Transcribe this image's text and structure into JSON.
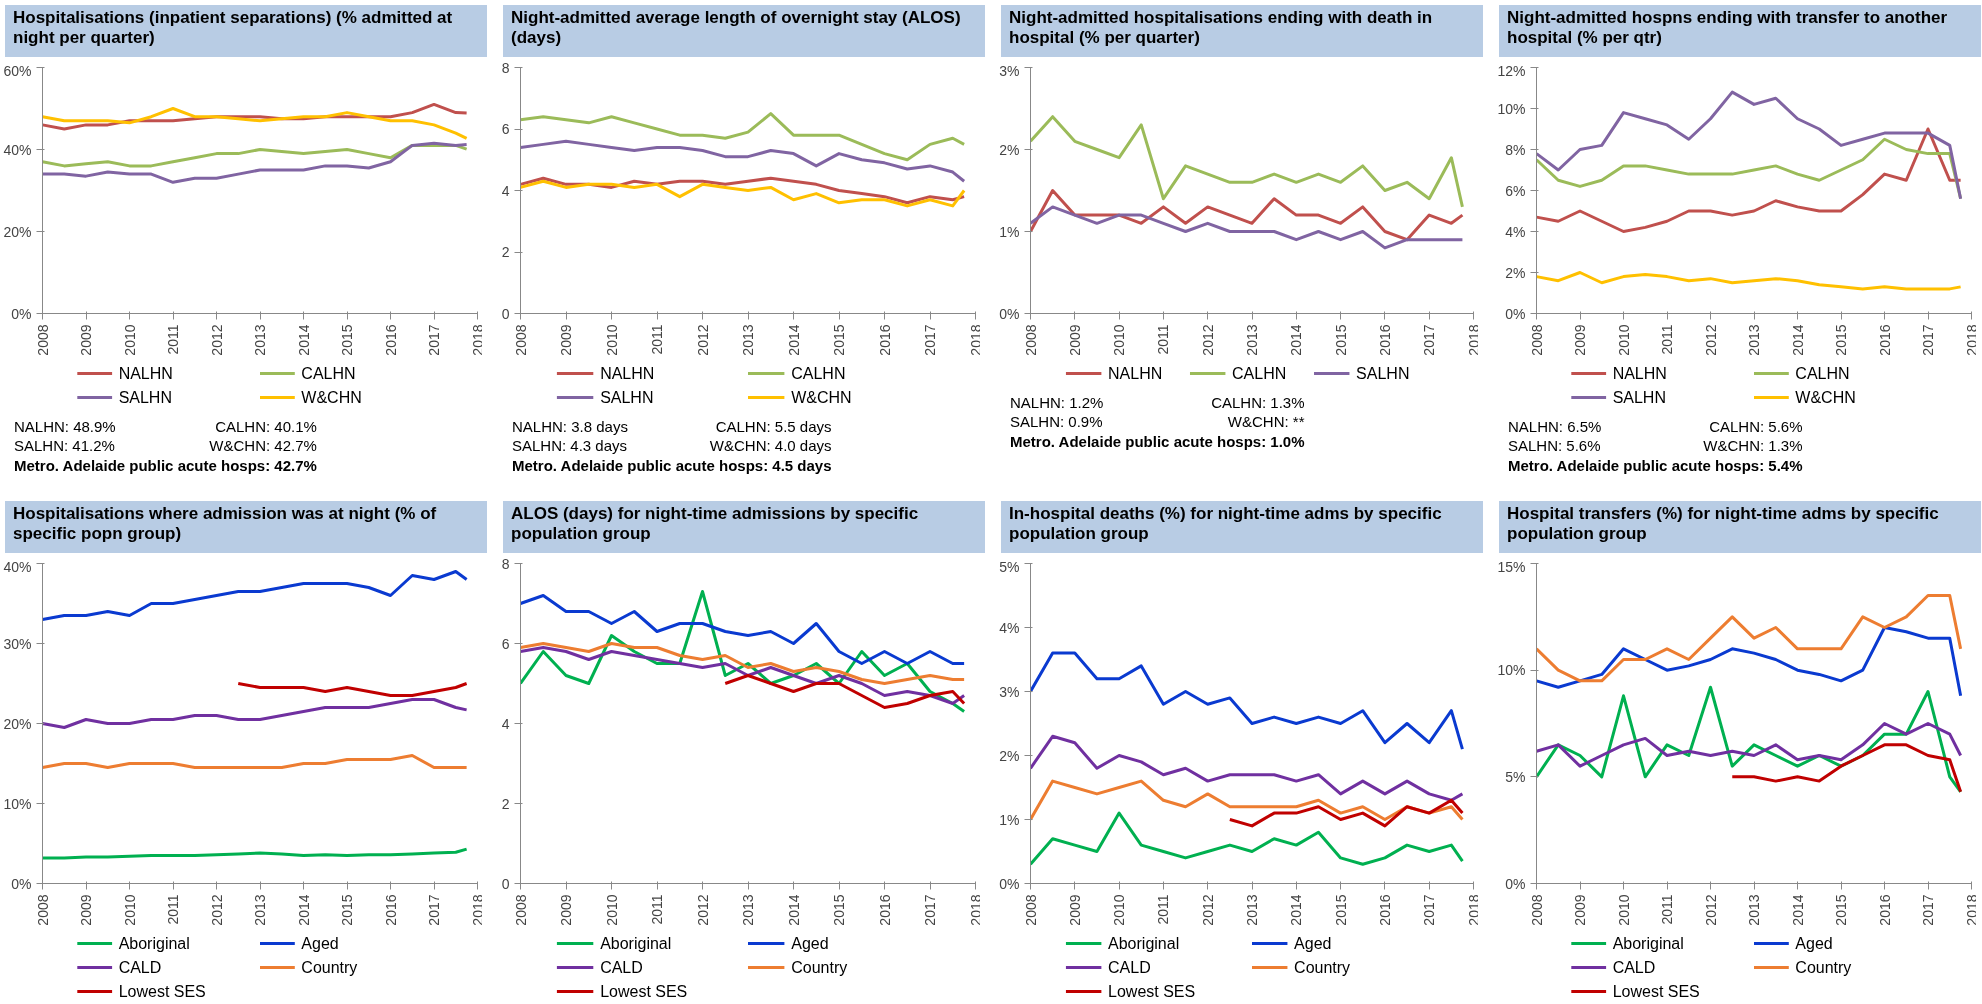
{
  "chart_data": [
    {
      "type": "line",
      "title": "Hospitalisations (inpatient separations) (% admitted at night per quarter)",
      "x": [
        2008,
        2008.5,
        2009,
        2009.5,
        2010,
        2010.5,
        2011,
        2011.5,
        2012,
        2012.5,
        2013,
        2013.5,
        2014,
        2014.5,
        2015,
        2015.5,
        2016,
        2016.5,
        2017,
        2017.5,
        2017.75
      ],
      "xlim": [
        2008,
        2018
      ],
      "xticks": [
        2008,
        2009,
        2010,
        2011,
        2012,
        2013,
        2014,
        2015,
        2016,
        2017,
        2018
      ],
      "ylim": [
        0,
        60
      ],
      "yticks": [
        {
          "value": 0,
          "label": "0%"
        },
        {
          "value": 20,
          "label": "20%"
        },
        {
          "value": 40,
          "label": "40%"
        },
        {
          "value": 60,
          "label": "60%"
        }
      ],
      "legend": "bottom",
      "series": [
        {
          "name": "NALHN",
          "color": "#c0504d",
          "values": [
            46,
            45,
            46,
            46,
            47,
            47,
            47,
            47.5,
            48,
            48,
            48,
            47.5,
            47.5,
            48,
            48,
            48,
            48,
            49,
            51,
            49,
            48.9
          ]
        },
        {
          "name": "CALHN",
          "color": "#9bbb59",
          "values": [
            37,
            36,
            36.5,
            37,
            36,
            36,
            37,
            38,
            39,
            39,
            40,
            39.5,
            39,
            39.5,
            40,
            39,
            38,
            41,
            41,
            41,
            40.1
          ]
        },
        {
          "name": "SALHN",
          "color": "#8064a2",
          "values": [
            34,
            34,
            33.5,
            34.5,
            34,
            34,
            32,
            33,
            33,
            34,
            35,
            35,
            35,
            36,
            36,
            35.5,
            37,
            41,
            41.5,
            41,
            41.2
          ]
        },
        {
          "name": "W&CHN",
          "color": "#ffc000",
          "values": [
            48,
            47,
            47,
            47,
            46.5,
            48,
            50,
            48,
            48,
            47.5,
            47,
            47.5,
            48,
            48,
            49,
            48,
            47,
            47,
            46,
            44,
            42.7
          ]
        }
      ],
      "annotations": [
        "NALHN: 48.9%",
        "CALHN: 40.1%",
        "SALHN: 41.2%",
        "W&CHN: 42.7%",
        "Metro. Adelaide public acute hosps: 42.7%"
      ]
    },
    {
      "type": "line",
      "title": "Night-admitted average length of overnight stay (ALOS) (days)",
      "x": [
        2008,
        2008.5,
        2009,
        2009.5,
        2010,
        2010.5,
        2011,
        2011.5,
        2012,
        2012.5,
        2013,
        2013.5,
        2014,
        2014.5,
        2015,
        2015.5,
        2016,
        2016.5,
        2017,
        2017.5,
        2017.75
      ],
      "xlim": [
        2008,
        2018
      ],
      "xticks": [
        2008,
        2009,
        2010,
        2011,
        2012,
        2013,
        2014,
        2015,
        2016,
        2017,
        2018
      ],
      "ylim": [
        0,
        8
      ],
      "yticks": [
        0,
        2,
        4,
        6,
        8
      ],
      "legend": "bottom",
      "series": [
        {
          "name": "NALHN",
          "color": "#c0504d",
          "values": [
            4.2,
            4.4,
            4.2,
            4.2,
            4.1,
            4.3,
            4.2,
            4.3,
            4.3,
            4.2,
            4.3,
            4.4,
            4.3,
            4.2,
            4.0,
            3.9,
            3.8,
            3.6,
            3.8,
            3.7,
            3.8
          ]
        },
        {
          "name": "CALHN",
          "color": "#9bbb59",
          "values": [
            6.3,
            6.4,
            6.3,
            6.2,
            6.4,
            6.2,
            6.0,
            5.8,
            5.8,
            5.7,
            5.9,
            6.5,
            5.8,
            5.8,
            5.8,
            5.5,
            5.2,
            5.0,
            5.5,
            5.7,
            5.5
          ]
        },
        {
          "name": "SALHN",
          "color": "#8064a2",
          "values": [
            5.4,
            5.5,
            5.6,
            5.5,
            5.4,
            5.3,
            5.4,
            5.4,
            5.3,
            5.1,
            5.1,
            5.3,
            5.2,
            4.8,
            5.2,
            5.0,
            4.9,
            4.7,
            4.8,
            4.6,
            4.3
          ]
        },
        {
          "name": "W&CHN",
          "color": "#ffc000",
          "values": [
            4.1,
            4.3,
            4.1,
            4.2,
            4.2,
            4.1,
            4.2,
            3.8,
            4.2,
            4.1,
            4.0,
            4.1,
            3.7,
            3.9,
            3.6,
            3.7,
            3.7,
            3.5,
            3.7,
            3.5,
            4.0
          ]
        }
      ],
      "annotations": [
        "NALHN: 3.8 days",
        "CALHN: 5.5 days",
        "SALHN: 4.3 days",
        "W&CHN: 4.0 days",
        "Metro. Adelaide public acute hosps: 4.5 days"
      ]
    },
    {
      "type": "line",
      "title": "Night-admitted hospitalisations ending with death in hospital (% per quarter)",
      "x": [
        2008,
        2008.5,
        2009,
        2009.5,
        2010,
        2010.5,
        2011,
        2011.5,
        2012,
        2012.5,
        2013,
        2013.5,
        2014,
        2014.5,
        2015,
        2015.5,
        2016,
        2016.5,
        2017,
        2017.5,
        2017.75
      ],
      "xlim": [
        2008,
        2018
      ],
      "xticks": [
        2008,
        2009,
        2010,
        2011,
        2012,
        2013,
        2014,
        2015,
        2016,
        2017,
        2018
      ],
      "ylim": [
        0,
        3
      ],
      "yticks": [
        {
          "value": 0,
          "label": "0%"
        },
        {
          "value": 1,
          "label": "1%"
        },
        {
          "value": 2,
          "label": "2%"
        },
        {
          "value": 3,
          "label": "3%"
        }
      ],
      "legend": "bottom",
      "series": [
        {
          "name": "NALHN",
          "color": "#c0504d",
          "values": [
            1.0,
            1.5,
            1.2,
            1.2,
            1.2,
            1.1,
            1.3,
            1.1,
            1.3,
            1.2,
            1.1,
            1.4,
            1.2,
            1.2,
            1.1,
            1.3,
            1.0,
            0.9,
            1.2,
            1.1,
            1.2
          ]
        },
        {
          "name": "CALHN",
          "color": "#9bbb59",
          "values": [
            2.1,
            2.4,
            2.1,
            2.0,
            1.9,
            2.3,
            1.4,
            1.8,
            1.7,
            1.6,
            1.6,
            1.7,
            1.6,
            1.7,
            1.6,
            1.8,
            1.5,
            1.6,
            1.4,
            1.9,
            1.3
          ]
        },
        {
          "name": "SALHN",
          "color": "#8064a2",
          "values": [
            1.1,
            1.3,
            1.2,
            1.1,
            1.2,
            1.2,
            1.1,
            1.0,
            1.1,
            1.0,
            1.0,
            1.0,
            0.9,
            1.0,
            0.9,
            1.0,
            0.8,
            0.9,
            0.9,
            0.9,
            0.9
          ]
        }
      ],
      "annotations": [
        "NALHN: 1.2%",
        "CALHN: 1.3%",
        "SALHN: 0.9%",
        "W&CHN: **",
        "Metro. Adelaide public acute hosps: 1.0%"
      ]
    },
    {
      "type": "line",
      "title": "Night-admitted hospns ending with transfer to another hospital (% per qtr)",
      "x": [
        2008,
        2008.5,
        2009,
        2009.5,
        2010,
        2010.5,
        2011,
        2011.5,
        2012,
        2012.5,
        2013,
        2013.5,
        2014,
        2014.5,
        2015,
        2015.5,
        2016,
        2016.5,
        2017,
        2017.5,
        2017.75
      ],
      "xlim": [
        2008,
        2018
      ],
      "xticks": [
        2008,
        2009,
        2010,
        2011,
        2012,
        2013,
        2014,
        2015,
        2016,
        2017,
        2018
      ],
      "ylim": [
        0,
        12
      ],
      "yticks": [
        {
          "value": 0,
          "label": "0%"
        },
        {
          "value": 2,
          "label": "2%"
        },
        {
          "value": 4,
          "label": "4%"
        },
        {
          "value": 6,
          "label": "6%"
        },
        {
          "value": 8,
          "label": "8%"
        },
        {
          "value": 10,
          "label": "10%"
        },
        {
          "value": 12,
          "label": "12%"
        }
      ],
      "legend": "bottom",
      "series": [
        {
          "name": "NALHN",
          "color": "#c0504d",
          "values": [
            4.7,
            4.5,
            5.0,
            4.5,
            4.0,
            4.2,
            4.5,
            5.0,
            5.0,
            4.8,
            5.0,
            5.5,
            5.2,
            5.0,
            5.0,
            5.8,
            6.8,
            6.5,
            9.0,
            6.5,
            6.5
          ]
        },
        {
          "name": "CALHN",
          "color": "#9bbb59",
          "values": [
            7.5,
            6.5,
            6.2,
            6.5,
            7.2,
            7.2,
            7.0,
            6.8,
            6.8,
            6.8,
            7.0,
            7.2,
            6.8,
            6.5,
            7.0,
            7.5,
            8.5,
            8.0,
            7.8,
            7.8,
            5.6
          ]
        },
        {
          "name": "SALHN",
          "color": "#8064a2",
          "values": [
            7.8,
            7.0,
            8.0,
            8.2,
            9.8,
            9.5,
            9.2,
            8.5,
            9.5,
            10.8,
            10.2,
            10.5,
            9.5,
            9.0,
            8.2,
            8.5,
            8.8,
            8.8,
            8.8,
            8.2,
            5.6
          ]
        },
        {
          "name": "W&CHN",
          "color": "#ffc000",
          "values": [
            1.8,
            1.6,
            2.0,
            1.5,
            1.8,
            1.9,
            1.8,
            1.6,
            1.7,
            1.5,
            1.6,
            1.7,
            1.6,
            1.4,
            1.3,
            1.2,
            1.3,
            1.2,
            1.2,
            1.2,
            1.3
          ]
        }
      ],
      "annotations": [
        "NALHN: 6.5%",
        "CALHN: 5.6%",
        "SALHN: 5.6%",
        "W&CHN: 1.3%",
        "Metro. Adelaide public acute hosps: 5.4%"
      ]
    },
    {
      "type": "line",
      "title": "Hospitalisations where admission was at night (% of specific popn group)",
      "x": [
        2008,
        2008.5,
        2009,
        2009.5,
        2010,
        2010.5,
        2011,
        2011.5,
        2012,
        2012.5,
        2013,
        2013.5,
        2014,
        2014.5,
        2015,
        2015.5,
        2016,
        2016.5,
        2017,
        2017.5,
        2017.75
      ],
      "xlim": [
        2008,
        2018
      ],
      "xticks": [
        2008,
        2009,
        2010,
        2011,
        2012,
        2013,
        2014,
        2015,
        2016,
        2017,
        2018
      ],
      "ylim": [
        0,
        40
      ],
      "yticks": [
        {
          "value": 0,
          "label": "0%"
        },
        {
          "value": 10,
          "label": "10%"
        },
        {
          "value": 20,
          "label": "20%"
        },
        {
          "value": 30,
          "label": "30%"
        },
        {
          "value": 40,
          "label": "40%"
        }
      ],
      "legend": "bottom",
      "series": [
        {
          "name": "Aboriginal",
          "color": "#00b050",
          "values": [
            3.2,
            3.2,
            3.3,
            3.3,
            3.4,
            3.5,
            3.5,
            3.5,
            3.6,
            3.7,
            3.8,
            3.7,
            3.5,
            3.6,
            3.5,
            3.6,
            3.6,
            3.7,
            3.8,
            3.9,
            4.3
          ]
        },
        {
          "name": "Aged",
          "color": "#0a3ad0",
          "values": [
            33,
            33.5,
            33.5,
            34,
            33.5,
            35,
            35,
            35.5,
            36,
            36.5,
            36.5,
            37,
            37.5,
            37.5,
            37.5,
            37,
            36,
            38.5,
            38,
            39,
            38
          ]
        },
        {
          "name": "CALD",
          "color": "#7030a0",
          "values": [
            20,
            19.5,
            20.5,
            20,
            20,
            20.5,
            20.5,
            21,
            21,
            20.5,
            20.5,
            21,
            21.5,
            22,
            22,
            22,
            22.5,
            23,
            23,
            22,
            21.7
          ]
        },
        {
          "name": "Country",
          "color": "#ed7d31",
          "values": [
            14.5,
            15,
            15,
            14.5,
            15,
            15,
            15,
            14.5,
            14.5,
            14.5,
            14.5,
            14.5,
            15,
            15,
            15.5,
            15.5,
            15.5,
            16,
            14.5,
            14.5,
            14.5
          ]
        },
        {
          "name": "Lowest SES",
          "color": "#c00000",
          "values": [
            null,
            null,
            null,
            null,
            null,
            null,
            null,
            null,
            null,
            25,
            24.5,
            24.5,
            24.5,
            24,
            24.5,
            24,
            23.5,
            23.5,
            24,
            24.5,
            25
          ]
        }
      ]
    },
    {
      "type": "line",
      "title": "ALOS (days) for night-time admissions by specific population group",
      "x": [
        2008,
        2008.5,
        2009,
        2009.5,
        2010,
        2010.5,
        2011,
        2011.5,
        2012,
        2012.5,
        2013,
        2013.5,
        2014,
        2014.5,
        2015,
        2015.5,
        2016,
        2016.5,
        2017,
        2017.5,
        2017.75
      ],
      "xlim": [
        2008,
        2018
      ],
      "xticks": [
        2008,
        2009,
        2010,
        2011,
        2012,
        2013,
        2014,
        2015,
        2016,
        2017,
        2018
      ],
      "ylim": [
        0,
        8
      ],
      "yticks": [
        0,
        2,
        4,
        6,
        8
      ],
      "legend": "bottom",
      "series": [
        {
          "name": "Aboriginal",
          "color": "#00b050",
          "values": [
            5.0,
            5.8,
            5.2,
            5.0,
            6.2,
            5.8,
            5.5,
            5.5,
            7.3,
            5.2,
            5.5,
            5.0,
            5.2,
            5.5,
            5.0,
            5.8,
            5.2,
            5.5,
            4.8,
            4.5,
            4.3
          ]
        },
        {
          "name": "Aged",
          "color": "#0a3ad0",
          "values": [
            7.0,
            7.2,
            6.8,
            6.8,
            6.5,
            6.8,
            6.3,
            6.5,
            6.5,
            6.3,
            6.2,
            6.3,
            6.0,
            6.5,
            5.8,
            5.5,
            5.8,
            5.5,
            5.8,
            5.5,
            5.5
          ]
        },
        {
          "name": "CALD",
          "color": "#7030a0",
          "values": [
            5.8,
            5.9,
            5.8,
            5.6,
            5.8,
            5.7,
            5.6,
            5.5,
            5.4,
            5.5,
            5.2,
            5.4,
            5.2,
            5.0,
            5.2,
            5.0,
            4.7,
            4.8,
            4.7,
            4.5,
            4.7
          ]
        },
        {
          "name": "Country",
          "color": "#ed7d31",
          "values": [
            5.9,
            6.0,
            5.9,
            5.8,
            6.0,
            5.9,
            5.9,
            5.7,
            5.6,
            5.7,
            5.4,
            5.5,
            5.3,
            5.4,
            5.3,
            5.1,
            5.0,
            5.1,
            5.2,
            5.1,
            5.1
          ]
        },
        {
          "name": "Lowest SES",
          "color": "#c00000",
          "values": [
            null,
            null,
            null,
            null,
            null,
            null,
            null,
            null,
            null,
            5.0,
            5.2,
            5.0,
            4.8,
            5.0,
            5.0,
            4.7,
            4.4,
            4.5,
            4.7,
            4.8,
            4.5
          ]
        }
      ]
    },
    {
      "type": "line",
      "title": "In-hospital deaths (%) for night-time adms by specific population group",
      "x": [
        2008,
        2008.5,
        2009,
        2009.5,
        2010,
        2010.5,
        2011,
        2011.5,
        2012,
        2012.5,
        2013,
        2013.5,
        2014,
        2014.5,
        2015,
        2015.5,
        2016,
        2016.5,
        2017,
        2017.5,
        2017.75
      ],
      "xlim": [
        2008,
        2018
      ],
      "xticks": [
        2008,
        2009,
        2010,
        2011,
        2012,
        2013,
        2014,
        2015,
        2016,
        2017,
        2018
      ],
      "ylim": [
        0,
        5
      ],
      "yticks": [
        {
          "value": 0,
          "label": "0%"
        },
        {
          "value": 1,
          "label": "1%"
        },
        {
          "value": 2,
          "label": "2%"
        },
        {
          "value": 3,
          "label": "3%"
        },
        {
          "value": 4,
          "label": "4%"
        },
        {
          "value": 5,
          "label": "5%"
        }
      ],
      "legend": "bottom",
      "series": [
        {
          "name": "Aboriginal",
          "color": "#00b050",
          "values": [
            0.3,
            0.7,
            0.6,
            0.5,
            1.1,
            0.6,
            0.5,
            0.4,
            0.5,
            0.6,
            0.5,
            0.7,
            0.6,
            0.8,
            0.4,
            0.3,
            0.4,
            0.6,
            0.5,
            0.6,
            0.35
          ]
        },
        {
          "name": "Aged",
          "color": "#0a3ad0",
          "values": [
            3.0,
            3.6,
            3.6,
            3.2,
            3.2,
            3.4,
            2.8,
            3.0,
            2.8,
            2.9,
            2.5,
            2.6,
            2.5,
            2.6,
            2.5,
            2.7,
            2.2,
            2.5,
            2.2,
            2.7,
            2.1
          ]
        },
        {
          "name": "CALD",
          "color": "#7030a0",
          "values": [
            1.8,
            2.3,
            2.2,
            1.8,
            2.0,
            1.9,
            1.7,
            1.8,
            1.6,
            1.7,
            1.7,
            1.7,
            1.6,
            1.7,
            1.4,
            1.6,
            1.4,
            1.6,
            1.4,
            1.3,
            1.4
          ]
        },
        {
          "name": "Country",
          "color": "#ed7d31",
          "values": [
            1.0,
            1.6,
            1.5,
            1.4,
            1.5,
            1.6,
            1.3,
            1.2,
            1.4,
            1.2,
            1.2,
            1.2,
            1.2,
            1.3,
            1.1,
            1.2,
            1.0,
            1.2,
            1.1,
            1.2,
            1.0
          ]
        },
        {
          "name": "Lowest SES",
          "color": "#c00000",
          "values": [
            null,
            null,
            null,
            null,
            null,
            null,
            null,
            null,
            null,
            1.0,
            0.9,
            1.1,
            1.1,
            1.2,
            1.0,
            1.1,
            0.9,
            1.2,
            1.1,
            1.3,
            1.1
          ]
        }
      ]
    },
    {
      "type": "line",
      "title": "Hospital transfers (%) for night-time adms by specific population group",
      "x": [
        2008,
        2008.5,
        2009,
        2009.5,
        2010,
        2010.5,
        2011,
        2011.5,
        2012,
        2012.5,
        2013,
        2013.5,
        2014,
        2014.5,
        2015,
        2015.5,
        2016,
        2016.5,
        2017,
        2017.5,
        2017.75
      ],
      "xlim": [
        2008,
        2018
      ],
      "xticks": [
        2008,
        2009,
        2010,
        2011,
        2012,
        2013,
        2014,
        2015,
        2016,
        2017,
        2018
      ],
      "ylim": [
        0,
        15
      ],
      "yticks": [
        {
          "value": 0,
          "label": "0%"
        },
        {
          "value": 5,
          "label": "5%"
        },
        {
          "value": 10,
          "label": "10%"
        },
        {
          "value": 15,
          "label": "15%"
        }
      ],
      "legend": "bottom",
      "series": [
        {
          "name": "Aboriginal",
          "color": "#00b050",
          "values": [
            5.0,
            6.5,
            6.0,
            5.0,
            8.8,
            5.0,
            6.5,
            6.0,
            9.2,
            5.5,
            6.5,
            6.0,
            5.5,
            6.0,
            5.5,
            6.0,
            7.0,
            7.0,
            9.0,
            5.0,
            4.3
          ]
        },
        {
          "name": "Aged",
          "color": "#0a3ad0",
          "values": [
            9.5,
            9.2,
            9.5,
            9.8,
            11.0,
            10.5,
            10.0,
            10.2,
            10.5,
            11.0,
            10.8,
            10.5,
            10.0,
            9.8,
            9.5,
            10.0,
            12.0,
            11.8,
            11.5,
            11.5,
            8.8
          ]
        },
        {
          "name": "CALD",
          "color": "#7030a0",
          "values": [
            6.2,
            6.5,
            5.5,
            6.0,
            6.5,
            6.8,
            6.0,
            6.2,
            6.0,
            6.2,
            6.0,
            6.5,
            5.8,
            6.0,
            5.8,
            6.5,
            7.5,
            7.0,
            7.5,
            7.0,
            6.0
          ]
        },
        {
          "name": "Country",
          "color": "#ed7d31",
          "values": [
            11.0,
            10.0,
            9.5,
            9.5,
            10.5,
            10.5,
            11.0,
            10.5,
            11.5,
            12.5,
            11.5,
            12.0,
            11.0,
            11.0,
            11.0,
            12.5,
            12.0,
            12.5,
            13.5,
            13.5,
            11.0
          ]
        },
        {
          "name": "Lowest SES",
          "color": "#c00000",
          "values": [
            null,
            null,
            null,
            null,
            null,
            null,
            null,
            null,
            null,
            5.0,
            5.0,
            4.8,
            5.0,
            4.8,
            5.5,
            6.0,
            6.5,
            6.5,
            6.0,
            5.8,
            4.3
          ]
        }
      ]
    }
  ]
}
